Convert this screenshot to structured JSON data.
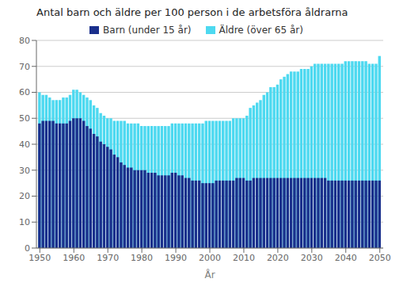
{
  "chart_data": {
    "type": "bar",
    "title": "Antal barn och äldre per 100 person i de arbetsföra åldrarna",
    "xlabel": "År",
    "x": [
      1950,
      1951,
      1952,
      1953,
      1954,
      1955,
      1956,
      1957,
      1958,
      1959,
      1960,
      1961,
      1962,
      1963,
      1964,
      1965,
      1966,
      1967,
      1968,
      1969,
      1970,
      1971,
      1972,
      1973,
      1974,
      1975,
      1976,
      1977,
      1978,
      1979,
      1980,
      1981,
      1982,
      1983,
      1984,
      1985,
      1986,
      1987,
      1988,
      1989,
      1990,
      1991,
      1992,
      1993,
      1994,
      1995,
      1996,
      1997,
      1998,
      1999,
      2000,
      2001,
      2002,
      2003,
      2004,
      2005,
      2006,
      2007,
      2008,
      2009,
      2010,
      2011,
      2012,
      2013,
      2014,
      2015,
      2016,
      2017,
      2018,
      2019,
      2020,
      2021,
      2022,
      2023,
      2024,
      2025,
      2026,
      2027,
      2028,
      2029,
      2030,
      2031,
      2032,
      2033,
      2034,
      2035,
      2036,
      2037,
      2038,
      2039,
      2040,
      2041,
      2042,
      2043,
      2044,
      2045,
      2046,
      2047,
      2048,
      2049,
      2050
    ],
    "series": [
      {
        "name": "Barn (under 15 år)",
        "color": "#1a2f8c",
        "values": [
          48,
          49,
          49,
          49,
          49,
          48,
          48,
          48,
          48,
          49,
          50,
          50,
          50,
          49,
          47,
          46,
          44,
          43,
          41,
          40,
          39,
          38,
          36,
          35,
          33,
          32,
          31,
          31,
          30,
          30,
          30,
          30,
          29,
          29,
          29,
          28,
          28,
          28,
          28,
          29,
          29,
          28,
          28,
          27,
          27,
          26,
          26,
          26,
          25,
          25,
          25,
          25,
          26,
          26,
          26,
          26,
          26,
          26,
          27,
          27,
          27,
          26,
          26,
          27,
          27,
          27,
          27,
          27,
          27,
          27,
          27,
          27,
          27,
          27,
          27,
          27,
          27,
          27,
          27,
          27,
          27,
          27,
          27,
          27,
          27,
          26,
          26,
          26,
          26,
          26,
          26,
          26,
          26,
          26,
          26,
          26,
          26,
          26,
          26,
          26,
          26
        ]
      },
      {
        "name": "Äldre (över 65 år)",
        "color": "#4dd9f0",
        "values": [
          60,
          59,
          59,
          58,
          57,
          57,
          57,
          58,
          58,
          59,
          61,
          61,
          60,
          59,
          58,
          57,
          55,
          54,
          52,
          51,
          50,
          50,
          49,
          49,
          49,
          49,
          48,
          48,
          48,
          48,
          47,
          47,
          47,
          47,
          47,
          47,
          47,
          47,
          47,
          48,
          48,
          48,
          48,
          48,
          48,
          48,
          48,
          48,
          48,
          49,
          49,
          49,
          49,
          49,
          49,
          49,
          49,
          50,
          50,
          50,
          50,
          51,
          54,
          55,
          56,
          57,
          59,
          60,
          62,
          62,
          63,
          65,
          66,
          67,
          68,
          68,
          68,
          69,
          69,
          69,
          70,
          71,
          71,
          71,
          71,
          71,
          71,
          71,
          71,
          71,
          72,
          72,
          72,
          72,
          72,
          72,
          72,
          71,
          71,
          71,
          74
        ]
      }
    ],
    "xlim": [
      1949,
      2051
    ],
    "xticks": [
      1950,
      1960,
      1970,
      1980,
      1990,
      2000,
      2010,
      2020,
      2030,
      2040,
      2050
    ],
    "ylim": [
      0,
      80
    ],
    "yticks": [
      0,
      10,
      20,
      30,
      40,
      50,
      60,
      70,
      80
    ],
    "grid": true,
    "legend": "top"
  }
}
